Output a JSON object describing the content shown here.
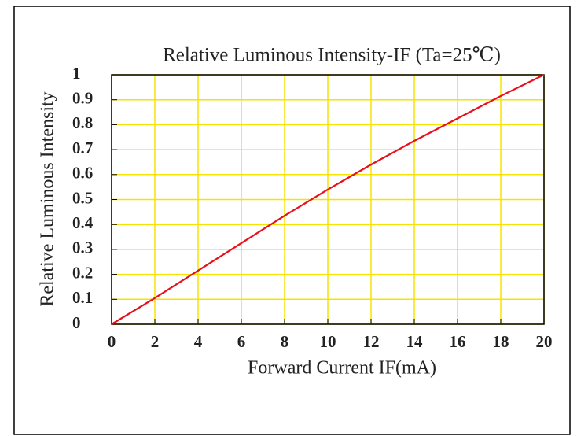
{
  "chart_data": {
    "type": "line",
    "title": "Relative Luminous Intensity-IF (Ta=25℃)",
    "x_label": "Forward Current IF(mA)",
    "y_label": "Relative Luminous Intensity",
    "x": [
      0,
      2,
      4,
      6,
      8,
      10,
      12,
      14,
      16,
      18,
      20
    ],
    "series": [
      {
        "name": "Relative Luminous Intensity",
        "color": "#e8101a",
        "values": [
          0,
          0.105,
          0.215,
          0.325,
          0.435,
          0.54,
          0.64,
          0.735,
          0.825,
          0.915,
          1.0
        ]
      }
    ],
    "xlim": [
      0,
      20
    ],
    "xticks": [
      0,
      2,
      4,
      6,
      8,
      10,
      12,
      14,
      16,
      18,
      20
    ],
    "ylim": [
      0,
      1
    ],
    "yticks": [
      0,
      0.1,
      0.2,
      0.3,
      0.4,
      0.5,
      0.6,
      0.7,
      0.8,
      0.9,
      1
    ],
    "grid": true,
    "grid_color": "#f5e400"
  }
}
